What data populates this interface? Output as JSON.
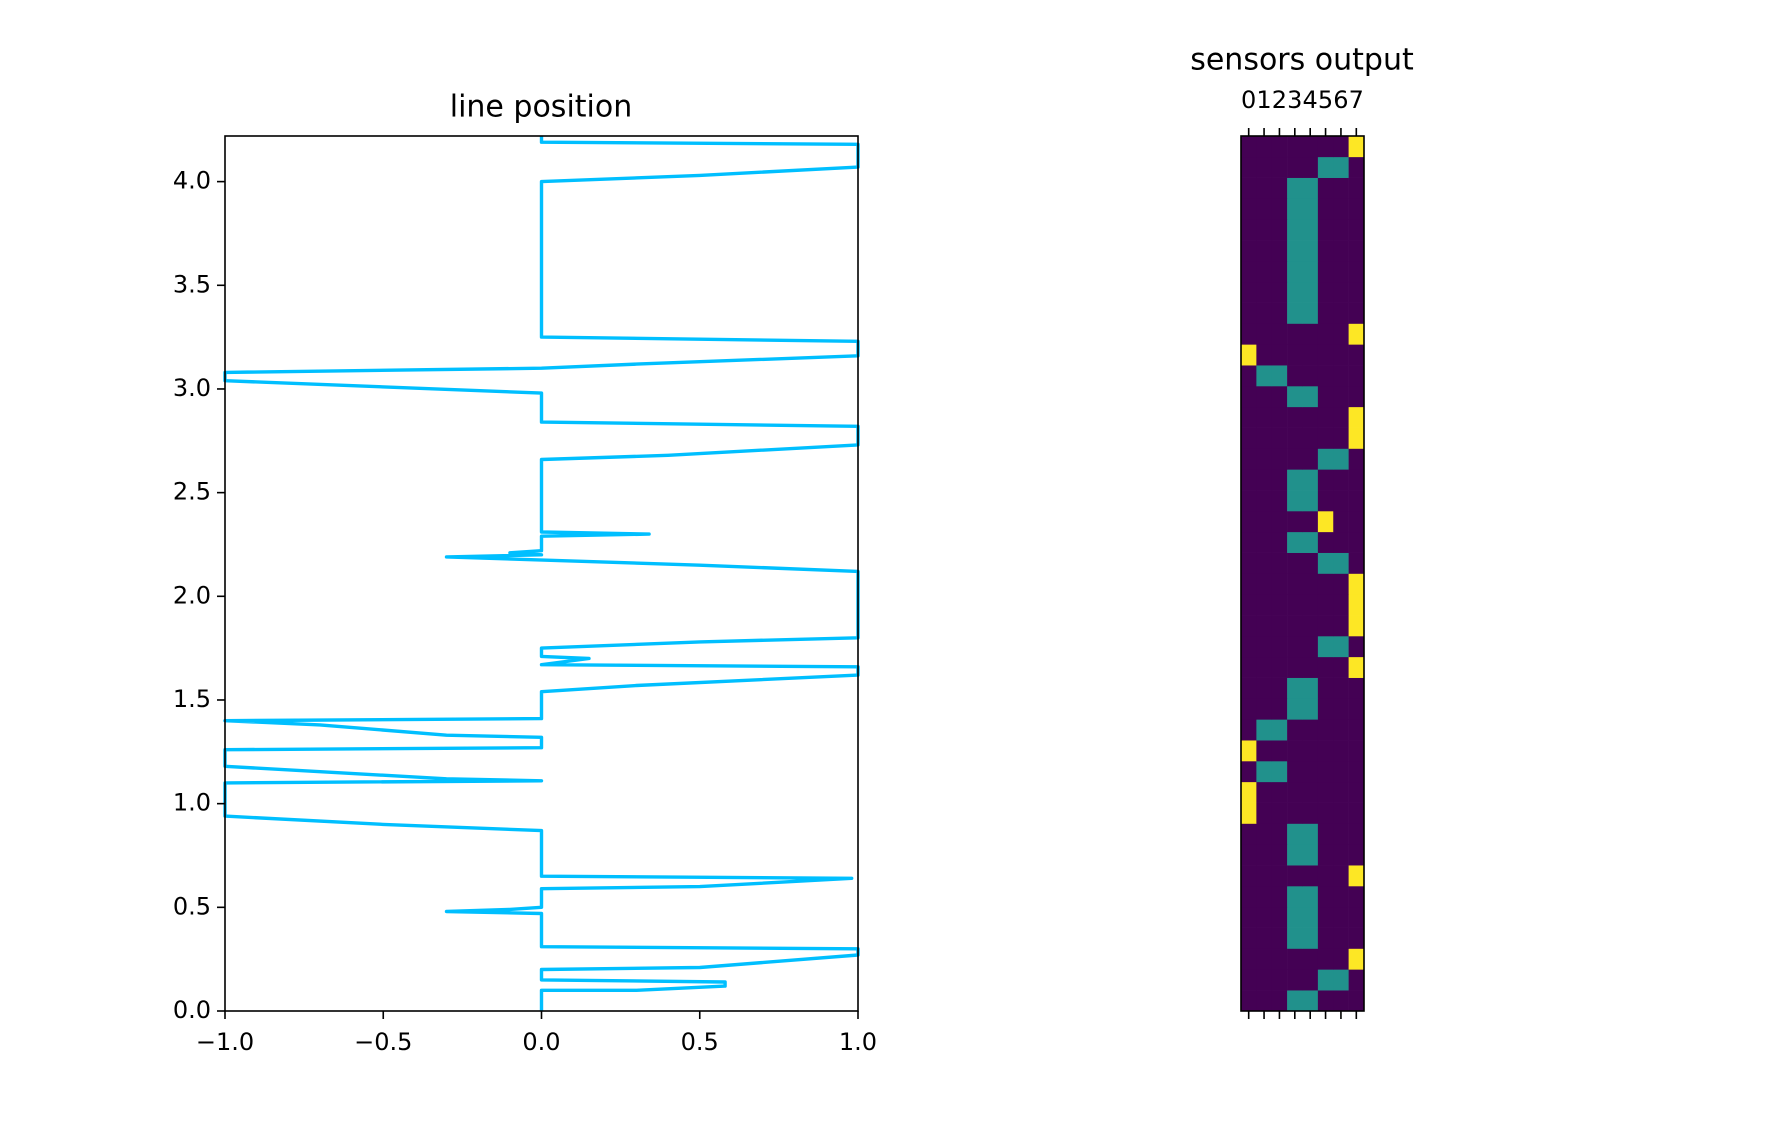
{
  "chart_data": [
    {
      "type": "line",
      "title": "line position",
      "color": "#00bfff",
      "x": [
        0,
        0,
        0.3,
        0.58,
        0.58,
        0,
        0,
        0.5,
        1,
        1,
        0,
        0,
        -0.3,
        -0.1,
        0,
        0,
        0.5,
        0.98,
        0,
        0,
        -0.5,
        -1,
        -1,
        0,
        -0.3,
        -1,
        -1,
        0,
        0,
        -0.3,
        -0.7,
        -1,
        0,
        0,
        0.3,
        1,
        1,
        0,
        0.15,
        0,
        0,
        0.5,
        1,
        1,
        0.5,
        -0.3,
        0,
        -0.1,
        0,
        0,
        0.34,
        0,
        0,
        0.4,
        1,
        1,
        0,
        0,
        -1,
        -1,
        0,
        0.3,
        1,
        1,
        0,
        0,
        0.5,
        1,
        1,
        0,
        0
      ],
      "values": [
        0,
        0.1,
        0.1,
        0.12,
        0.14,
        0.15,
        0.2,
        0.21,
        0.27,
        0.3,
        0.31,
        0.47,
        0.48,
        0.49,
        0.5,
        0.59,
        0.6,
        0.64,
        0.65,
        0.87,
        0.9,
        0.94,
        1.1,
        1.11,
        1.12,
        1.18,
        1.26,
        1.27,
        1.32,
        1.33,
        1.38,
        1.4,
        1.41,
        1.54,
        1.57,
        1.62,
        1.66,
        1.67,
        1.7,
        1.71,
        1.75,
        1.78,
        1.8,
        2.12,
        2.15,
        2.19,
        2.2,
        2.21,
        2.22,
        2.29,
        2.3,
        2.31,
        2.66,
        2.68,
        2.73,
        2.82,
        2.84,
        2.98,
        3.04,
        3.08,
        3.1,
        3.12,
        3.16,
        3.23,
        3.25,
        4.0,
        4.03,
        4.07,
        4.18,
        4.19,
        4.22
      ],
      "xlim": [
        -1,
        1
      ],
      "xticks": [
        {
          "value": -1,
          "label": "−1.0"
        },
        {
          "value": -0.5,
          "label": "−0.5"
        },
        {
          "value": 0,
          "label": "0.0"
        },
        {
          "value": 0.5,
          "label": "0.5"
        },
        {
          "value": 1,
          "label": "1.0"
        }
      ],
      "ylim": [
        0,
        4.22
      ],
      "yticks": [
        {
          "value": 0,
          "label": "0.0"
        },
        {
          "value": 0.5,
          "label": "0.5"
        },
        {
          "value": 1,
          "label": "1.0"
        },
        {
          "value": 1.5,
          "label": "1.5"
        },
        {
          "value": 2,
          "label": "2.0"
        },
        {
          "value": 2.5,
          "label": "2.5"
        },
        {
          "value": 3,
          "label": "3.0"
        },
        {
          "value": 3.5,
          "label": "3.5"
        },
        {
          "value": 4,
          "label": "4.0"
        }
      ]
    },
    {
      "type": "heatmap",
      "title": "sensors output",
      "origin": "lower",
      "colorscale": [
        "#440154",
        "#21918c",
        "#fde725"
      ],
      "xlim": [
        -0.5,
        7.5
      ],
      "xticks": [
        0,
        1,
        2,
        3,
        4,
        5,
        6,
        7
      ],
      "z": [
        [
          0,
          0,
          0,
          0.5,
          0.5,
          0,
          0,
          0
        ],
        [
          0,
          0,
          0,
          0,
          0,
          0.5,
          0.5,
          0
        ],
        [
          0,
          0,
          0,
          0,
          0,
          0,
          0,
          1
        ],
        [
          0,
          0,
          0,
          0.5,
          0.5,
          0,
          0,
          0
        ],
        [
          0,
          0,
          0,
          0.5,
          0.5,
          0,
          0,
          0
        ],
        [
          0,
          0,
          0,
          0.5,
          0.5,
          0,
          0,
          0
        ],
        [
          0,
          0,
          0,
          0,
          0,
          0,
          0,
          1
        ],
        [
          0,
          0,
          0,
          0.5,
          0.5,
          0,
          0,
          0
        ],
        [
          0,
          0,
          0,
          0.5,
          0.5,
          0,
          0,
          0
        ],
        [
          1,
          0,
          0,
          0,
          0,
          0,
          0,
          0
        ],
        [
          1,
          0,
          0,
          0,
          0,
          0,
          0,
          0
        ],
        [
          0,
          0.5,
          0.5,
          0,
          0,
          0,
          0,
          0
        ],
        [
          1,
          0,
          0,
          0,
          0,
          0,
          0,
          0
        ],
        [
          0,
          0.5,
          0.5,
          0,
          0,
          0,
          0,
          0
        ],
        [
          0,
          0,
          0,
          0.5,
          0.5,
          0,
          0,
          0
        ],
        [
          0,
          0,
          0,
          0.5,
          0.5,
          0,
          0,
          0
        ],
        [
          0,
          0,
          0,
          0,
          0,
          0,
          0,
          1
        ],
        [
          0,
          0,
          0,
          0,
          0,
          0.5,
          0.5,
          0
        ],
        [
          0,
          0,
          0,
          0,
          0,
          0,
          0,
          1
        ],
        [
          0,
          0,
          0,
          0,
          0,
          0,
          0,
          1
        ],
        [
          0,
          0,
          0,
          0,
          0,
          0,
          0,
          1
        ],
        [
          0,
          0,
          0,
          0,
          0,
          0.5,
          0.5,
          0
        ],
        [
          0,
          0,
          0,
          0.5,
          0.5,
          0,
          0,
          0
        ],
        [
          0,
          0,
          0,
          0,
          0,
          1,
          0,
          0
        ],
        [
          0,
          0,
          0,
          0.5,
          0.5,
          0,
          0,
          0
        ],
        [
          0,
          0,
          0,
          0.5,
          0.5,
          0,
          0,
          0
        ],
        [
          0,
          0,
          0,
          0,
          0,
          0.5,
          0.5,
          0
        ],
        [
          0,
          0,
          0,
          0,
          0,
          0,
          0,
          1
        ],
        [
          0,
          0,
          0,
          0,
          0,
          0,
          0,
          1
        ],
        [
          0,
          0,
          0,
          0.5,
          0.5,
          0,
          0,
          0
        ],
        [
          0,
          0.5,
          0.5,
          0,
          0,
          0,
          0,
          0
        ],
        [
          1,
          0,
          0,
          0,
          0,
          0,
          0,
          0
        ],
        [
          0,
          0,
          0,
          0,
          0,
          0,
          0,
          1
        ],
        [
          0,
          0,
          0,
          0.5,
          0.5,
          0,
          0,
          0
        ],
        [
          0,
          0,
          0,
          0.5,
          0.5,
          0,
          0,
          0
        ],
        [
          0,
          0,
          0,
          0.5,
          0.5,
          0,
          0,
          0
        ],
        [
          0,
          0,
          0,
          0.5,
          0.5,
          0,
          0,
          0
        ],
        [
          0,
          0,
          0,
          0.5,
          0.5,
          0,
          0,
          0
        ],
        [
          0,
          0,
          0,
          0.5,
          0.5,
          0,
          0,
          0
        ],
        [
          0,
          0,
          0,
          0.5,
          0.5,
          0,
          0,
          0
        ],
        [
          0,
          0,
          0,
          0,
          0,
          0.5,
          0.5,
          0
        ],
        [
          0,
          0,
          0,
          0,
          0,
          0,
          0,
          1
        ]
      ]
    }
  ]
}
